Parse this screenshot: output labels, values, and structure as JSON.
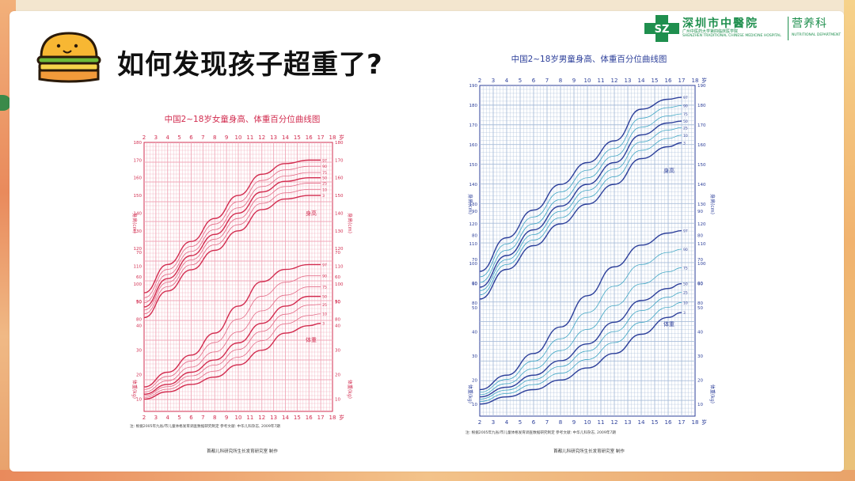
{
  "slide": {
    "title": "如何发现孩子超重了?"
  },
  "logo": {
    "hospital_cn": "深圳市中醫院",
    "hospital_sub_cn": "广州中医药大学第四临床医学院",
    "hospital_en": "SHENZHEN TRADITIONAL CHINESE MEDICINE HOSPITAL",
    "department_cn": "营养科",
    "department_en": "NUTRITIONAL DEPARTMENT",
    "badge_text": "SZ"
  },
  "colors": {
    "girl_line": "#d22c4f",
    "girl_grid": "#f0a8b8",
    "boy_line": "#2c3f9a",
    "boy_line_light": "#3fa6c4",
    "boy_grid": "#a9bdd9",
    "logo_green": "#1f8f4e"
  },
  "chart_data": [
    {
      "type": "line",
      "title": "中国2~18岁女童身高、体重百分位曲线图",
      "x_label": "岁",
      "x_ticks": [
        "2",
        "3",
        "4",
        "5",
        "6",
        "7",
        "8",
        "9",
        "10",
        "11",
        "12",
        "13",
        "14",
        "15",
        "16",
        "17",
        "18"
      ],
      "xlim": [
        2,
        18
      ],
      "height_label": "身高(cm)",
      "weight_label": "体重(kg)",
      "height_curve_label": "身高",
      "weight_curve_label": "体重",
      "height_ticks": [
        "80",
        "90",
        "100",
        "110",
        "120",
        "130",
        "140",
        "150",
        "160",
        "170",
        "180"
      ],
      "weight_ticks": [
        "10",
        "20",
        "30",
        "40",
        "50",
        "60",
        "70"
      ],
      "height_ylim": [
        70,
        180
      ],
      "weight_ylim": [
        5,
        80
      ],
      "percentile_labels": [
        "97",
        "90",
        "75",
        "50",
        "25",
        "10",
        "3"
      ],
      "height_x": [
        2,
        4,
        6,
        8,
        10,
        12,
        14,
        16,
        17
      ],
      "height_series": [
        {
          "name": "97",
          "values": [
            95,
            111,
            124,
            137,
            150,
            162,
            168,
            170,
            170
          ]
        },
        {
          "name": "50",
          "values": [
            87,
            103,
            116,
            128,
            140,
            152,
            158,
            160,
            160
          ]
        },
        {
          "name": "3",
          "values": [
            81,
            96,
            108,
            119,
            130,
            142,
            148,
            150,
            150
          ]
        }
      ],
      "weight_x": [
        2,
        4,
        6,
        8,
        10,
        12,
        14,
        16,
        17
      ],
      "weight_series": [
        {
          "name": "97",
          "values": [
            15,
            21,
            28,
            37,
            48,
            58,
            63,
            65,
            65
          ]
        },
        {
          "name": "50",
          "values": [
            12,
            16,
            21,
            26,
            33,
            41,
            48,
            52,
            52
          ]
        },
        {
          "name": "3",
          "values": [
            10,
            13,
            16,
            19,
            24,
            30,
            37,
            40,
            41
          ]
        }
      ],
      "footnote": "注: 根据2005年九省/市儿童体格发育调查数据研究制定     参考文献: 中华儿科杂志, 2009年7期",
      "footer": "首都儿科研究所生长发育研究室  制作"
    },
    {
      "type": "line",
      "title": "中国2~18岁男童身高、体重百分位曲线图",
      "x_label": "岁",
      "x_ticks": [
        "2",
        "3",
        "4",
        "5",
        "6",
        "7",
        "8",
        "9",
        "10",
        "11",
        "12",
        "13",
        "14",
        "15",
        "16",
        "17",
        "18"
      ],
      "xlim": [
        2,
        18
      ],
      "height_label": "身高(cm)",
      "weight_label": "体重(kg)",
      "height_curve_label": "身高",
      "weight_curve_label": "体重",
      "height_ticks": [
        "80",
        "90",
        "100",
        "110",
        "120",
        "130",
        "140",
        "150",
        "160",
        "170",
        "180",
        "190"
      ],
      "weight_ticks": [
        "10",
        "20",
        "30",
        "40",
        "50",
        "60",
        "70",
        "80",
        "90"
      ],
      "height_ylim": [
        70,
        190
      ],
      "weight_ylim": [
        5,
        95
      ],
      "percentile_labels": [
        "97",
        "90",
        "75",
        "50",
        "25",
        "10",
        "3"
      ],
      "height_x": [
        2,
        4,
        6,
        8,
        10,
        12,
        14,
        16,
        17
      ],
      "height_series": [
        {
          "name": "97",
          "values": [
            96,
            113,
            127,
            140,
            151,
            162,
            178,
            183,
            184
          ]
        },
        {
          "name": "50",
          "values": [
            88,
            104,
            117,
            129,
            140,
            151,
            165,
            171,
            172
          ]
        },
        {
          "name": "3",
          "values": [
            82,
            97,
            109,
            120,
            130,
            140,
            153,
            159,
            161
          ]
        }
      ],
      "weight_x": [
        2,
        4,
        6,
        8,
        10,
        12,
        14,
        16,
        17
      ],
      "weight_series": [
        {
          "name": "97",
          "values": [
            16,
            22,
            31,
            42,
            55,
            67,
            76,
            81,
            82
          ]
        },
        {
          "name": "50",
          "values": [
            13,
            17,
            22,
            28,
            35,
            44,
            53,
            58,
            60
          ]
        },
        {
          "name": "3",
          "values": [
            10,
            13,
            16,
            20,
            25,
            31,
            39,
            46,
            48
          ]
        }
      ],
      "footnote": "注: 根据2005年九省/市儿童体格发育调查数据研究制定     参考文献: 中华儿科杂志, 2009年7期",
      "footer": "首都儿科研究所生长发育研究室  制作"
    }
  ]
}
